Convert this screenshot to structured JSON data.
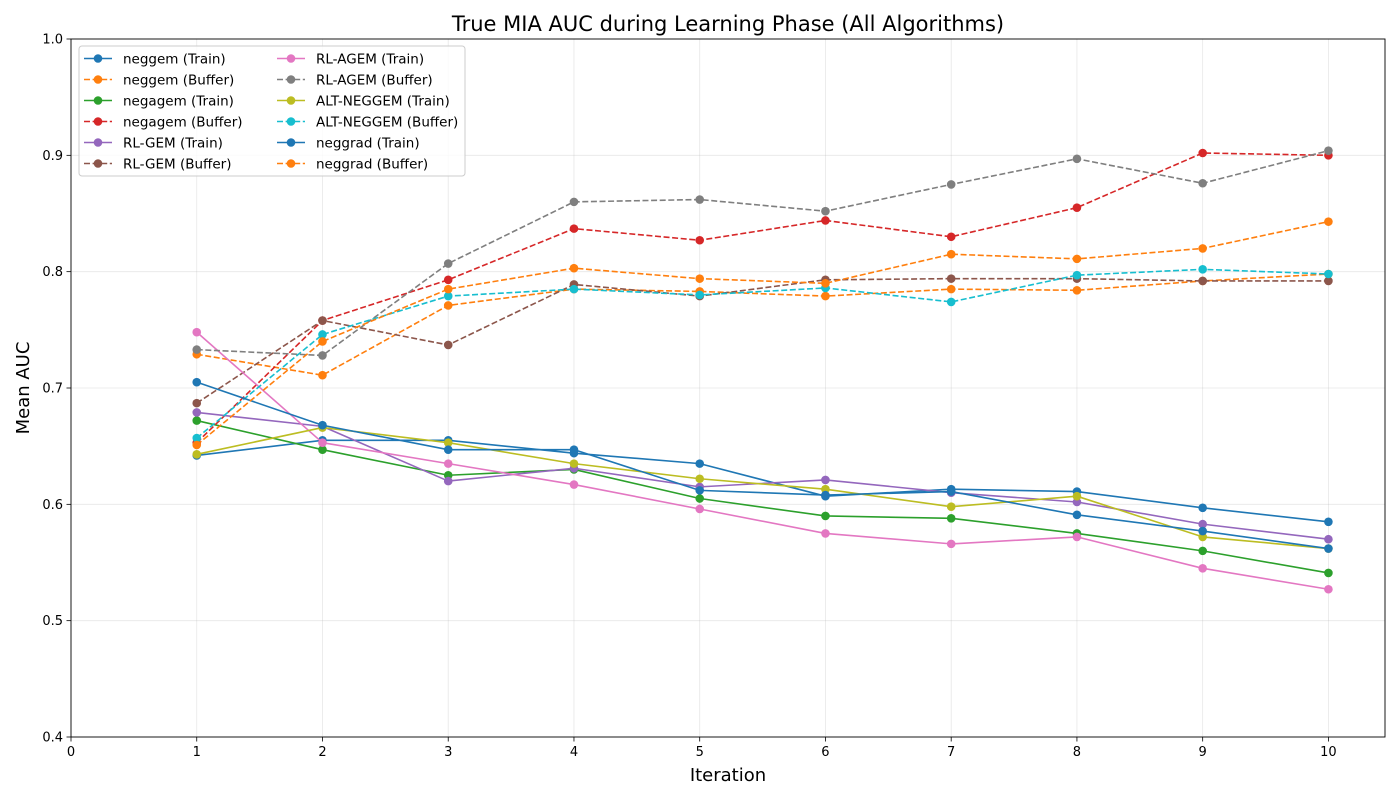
{
  "chart_data": {
    "type": "line",
    "title": "True MIA AUC during Learning Phase (All Algorithms)",
    "xlabel": "Iteration",
    "ylabel": "Mean AUC",
    "xlim": [
      0,
      10.45
    ],
    "ylim": [
      0.4,
      1.0
    ],
    "x_ticks": [
      "0",
      "1",
      "2",
      "3",
      "4",
      "5",
      "6",
      "7",
      "8",
      "9",
      "10"
    ],
    "y_ticks": [
      "0.4",
      "0.5",
      "0.6",
      "0.7",
      "0.8",
      "0.9",
      "1.0"
    ],
    "grid": true,
    "legend_position": "top-left",
    "legend_columns": 2,
    "x": [
      1,
      2,
      3,
      4,
      5,
      6,
      7,
      8,
      9,
      10
    ],
    "series": [
      {
        "name": "neggem (Train)",
        "color": "#1f77b4",
        "dashed": false,
        "values": [
          0.642,
          0.655,
          0.655,
          0.644,
          0.635,
          0.607,
          0.613,
          0.611,
          0.597,
          0.585
        ]
      },
      {
        "name": "neggem (Buffer)",
        "color": "#ff7f0e",
        "dashed": true,
        "values": [
          0.729,
          0.711,
          0.771,
          0.785,
          0.783,
          0.779,
          0.785,
          0.784,
          0.792,
          0.798
        ]
      },
      {
        "name": "negagem (Train)",
        "color": "#2ca02c",
        "dashed": false,
        "values": [
          0.672,
          0.647,
          0.625,
          0.63,
          0.605,
          0.59,
          0.588,
          0.575,
          0.56,
          0.541
        ]
      },
      {
        "name": "negagem (Buffer)",
        "color": "#d62728",
        "dashed": true,
        "values": [
          0.653,
          0.758,
          0.793,
          0.837,
          0.827,
          0.844,
          0.83,
          0.855,
          0.902,
          0.9
        ]
      },
      {
        "name": "RL-GEM (Train)",
        "color": "#9467bd",
        "dashed": false,
        "values": [
          0.679,
          0.667,
          0.62,
          0.631,
          0.615,
          0.621,
          0.61,
          0.602,
          0.583,
          0.57
        ]
      },
      {
        "name": "RL-GEM (Buffer)",
        "color": "#8c564b",
        "dashed": true,
        "values": [
          0.687,
          0.758,
          0.737,
          0.789,
          0.779,
          0.793,
          0.794,
          0.794,
          0.792,
          0.792
        ]
      },
      {
        "name": "RL-AGEM (Train)",
        "color": "#e377c2",
        "dashed": false,
        "values": [
          0.748,
          0.653,
          0.635,
          0.617,
          0.596,
          0.575,
          0.566,
          0.572,
          0.545,
          0.527
        ]
      },
      {
        "name": "RL-AGEM (Buffer)",
        "color": "#7f7f7f",
        "dashed": true,
        "values": [
          0.733,
          0.728,
          0.807,
          0.86,
          0.862,
          0.852,
          0.875,
          0.897,
          0.876,
          0.904
        ]
      },
      {
        "name": "ALT-NEGGEM (Train)",
        "color": "#bcbd22",
        "dashed": false,
        "values": [
          0.643,
          0.666,
          0.653,
          0.635,
          0.622,
          0.613,
          0.598,
          0.607,
          0.572,
          0.562
        ]
      },
      {
        "name": "ALT-NEGGEM (Buffer)",
        "color": "#17becf",
        "dashed": true,
        "values": [
          0.657,
          0.746,
          0.779,
          0.785,
          0.78,
          0.786,
          0.774,
          0.797,
          0.802,
          0.798
        ]
      },
      {
        "name": "neggrad (Train)",
        "color": "#1f77b4",
        "dashed": false,
        "values": [
          0.705,
          0.668,
          0.647,
          0.647,
          0.612,
          0.608,
          0.611,
          0.591,
          0.577,
          0.562
        ]
      },
      {
        "name": "neggrad (Buffer)",
        "color": "#ff7f0e",
        "dashed": true,
        "values": [
          0.651,
          0.74,
          0.785,
          0.803,
          0.794,
          0.79,
          0.815,
          0.811,
          0.82,
          0.843
        ]
      }
    ]
  }
}
